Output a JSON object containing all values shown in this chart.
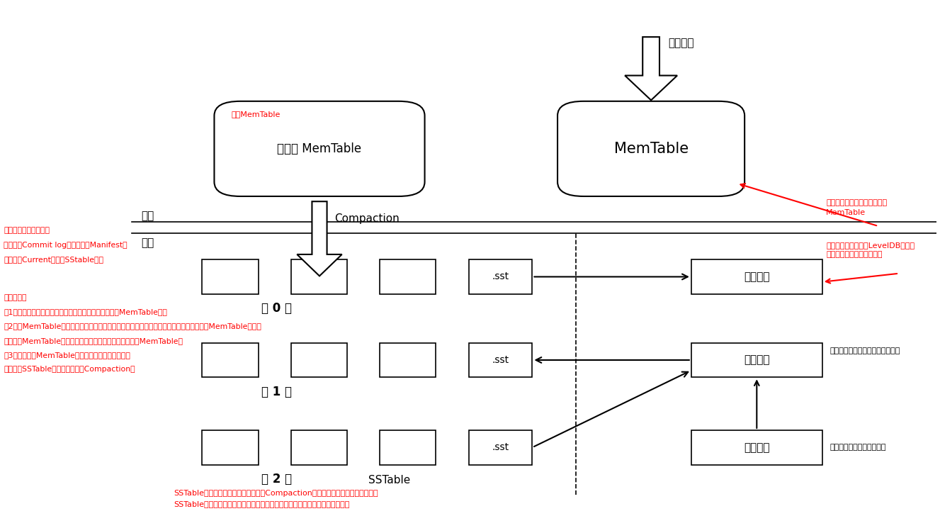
{
  "bg_color": "#ffffff",
  "memtable_label": "MemTable",
  "immem_label": "不可变 MemTable",
  "immem_sublabel": "冻结MemTable",
  "write_op_label": "写入操作",
  "memory_label": "内存",
  "disk_label": "磁盘",
  "compaction_label": "Compaction",
  "sstable_label": "SSTable",
  "layer0_label": "第 0 层",
  "layer1_label": "第 1 层",
  "layer2_label": "第 2 层",
  "sst_label": ".sst",
  "op_log_label": "操作日志",
  "manifest_label": "清单文件",
  "current_label": "当前文件",
  "ann1_text": "成功后，再将修改操作应用到\nMemTable",
  "ann2_text": "当写入一条记录时，LevelDB首先会\n修改操作写入到日志文件中",
  "ann3_text": "记录新的文件产生，旧的文件丢弃",
  "ann4_text": "指出哪个清单文件是有效的",
  "left_text1_line1": "磁盘上的主要文件有：",
  "left_text1_line2": "操作日志Commit log、清单文件Manifest、",
  "left_text1_line3": "当前文件Current、以及SStable文件",
  "left_text2_line1": "主要过程：",
  "left_text2_line2": "（1）新到来的数据被记入新的操作日志文件和新生成的MemTable中；",
  "left_text2_line3": "（2）当MemTable占用的内存到达一个上限后，会将内存的数据转存到外村文件中，原来的MemTable冻结为",
  "left_text2_line4": "不可变的MemTable（只能读，不能写和删），并生成新的MemTable；",
  "left_text2_line5": "（3）不可变的MemTable的数据排序后转存到磁盘，",
  "left_text2_line6": "形成新的SSTable文件。（称之为Compaction）",
  "bottom_line1": "SSTable文件是内存中的数据不断进行Compaction操作后形成的，是一种层级结构",
  "bottom_line2": "SSTable的文件是按照记录的主键排序的，每个文件有最小的主键和最大的主键"
}
